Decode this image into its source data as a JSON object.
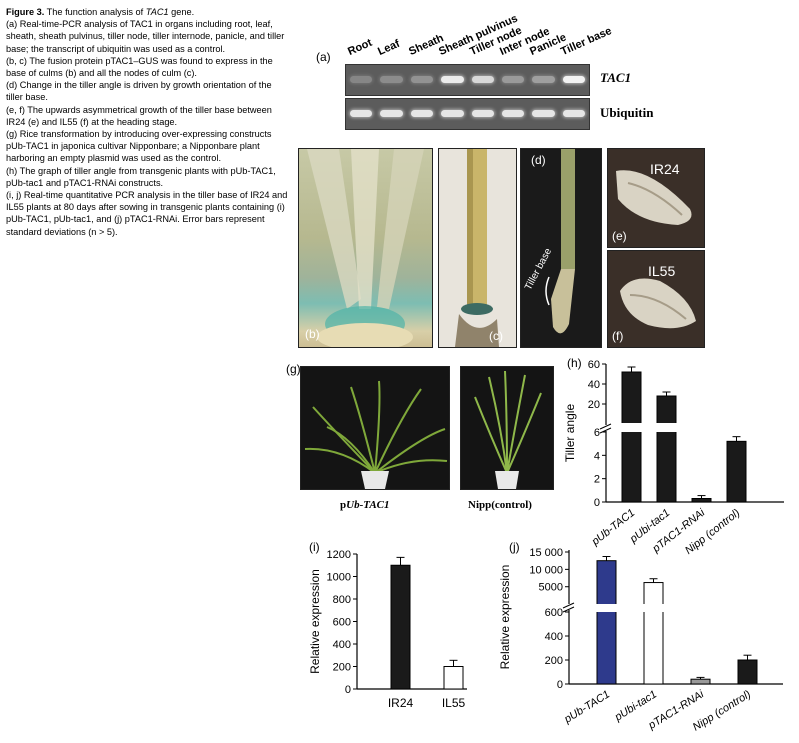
{
  "caption": {
    "title_bold": "Figure 3.",
    "title_rest": " The function analysis of ",
    "title_gene": "TAC1",
    "title_end": " gene.",
    "a": "(a) Real-time-PCR analysis of TAC1 in organs including root, leaf, sheath, sheath pulvinus, tiller node, tiller internode, panicle, and tiller base; the transcript of ubiquitin was used as a control.",
    "bc": "(b, c) The fusion protein pTAC1–GUS was found to express in the base of culms (b) and all the nodes of culm (c).",
    "d": "(d) Change in the tiller angle is driven by growth orientation of the tiller base.",
    "ef": "(e, f) The upwards asymmetrical growth of the tiller base between IR24 (e) and IL55 (f) at the heading stage.",
    "g": "(g) Rice transformation by introducing over-expressing constructs pUb-TAC1 in japonica cultivar Nipponbare; a Nipponbare plant harboring an empty plasmid was used as the control.",
    "h": "(h) The graph of tiller angle from transgenic plants with pUb-TAC1, pUb-tac1 and pTAC1-RNAi constructs.",
    "ij": "(i, j) Real-time quantitative PCR analysis in the tiller base of IR24 and IL55 plants at 80 days after sowing in transgenic plants containing (i) pUb-TAC1, pUb-tac1, and (j) pTAC1-RNAi. Error bars represent standard deviations (n > 5)."
  },
  "gel": {
    "panel_label": "(a)",
    "lanes": [
      "Root",
      "Leaf",
      "Sheath",
      "Sheath pulvinus",
      "Tiller node",
      "Inter node",
      "Panicle",
      "Tiller base"
    ],
    "rows": [
      {
        "name": "TAC1",
        "band_intensity": [
          0.15,
          0.2,
          0.25,
          0.95,
          0.8,
          0.3,
          0.35,
          1.0
        ]
      },
      {
        "name": "Ubiquitin",
        "band_intensity": [
          0.9,
          0.9,
          0.9,
          0.9,
          0.9,
          0.9,
          0.9,
          0.9
        ]
      }
    ]
  },
  "photos": {
    "b": "(b)",
    "c": "(c)",
    "d": "(d)",
    "e": "(e)",
    "f": "(f)",
    "g": "(g)",
    "e_label": "IR24",
    "f_label": "IL55",
    "d_annotation": "Tiller base",
    "g_left_prefix": "p",
    "g_left_italic": "Ub-TAC1",
    "g_right": "Nipp(control)"
  },
  "chart_data": [
    {
      "id": "h",
      "panel_label": "(h)",
      "type": "bar",
      "ylabel": "Tiller angle",
      "categories": [
        "pUb-TAC1",
        "pUbi-tac1",
        "pTAC1-RNAi",
        "Nipp (control)"
      ],
      "values": [
        52,
        28,
        0.3,
        5.2
      ],
      "errors": [
        5,
        4,
        0.25,
        0.4
      ],
      "colors": [
        "#1a1a1a",
        "#1a1a1a",
        "#1a1a1a",
        "#1a1a1a"
      ],
      "yticks_upper": [
        "20",
        "40",
        "60"
      ],
      "yticks_lower": [
        "0",
        "2",
        "4",
        "6"
      ],
      "broken_axis": true
    },
    {
      "id": "i",
      "panel_label": "(i)",
      "type": "bar",
      "ylabel": "Relative expression",
      "categories": [
        "IR24",
        "IL55"
      ],
      "values": [
        1100,
        200
      ],
      "errors": [
        70,
        55
      ],
      "colors": [
        "#1a1a1a",
        "#ffffff"
      ],
      "yticks": [
        "0",
        "200",
        "400",
        "600",
        "800",
        "1000",
        "1200"
      ],
      "ylim": [
        0,
        1200
      ]
    },
    {
      "id": "j",
      "panel_label": "(j)",
      "type": "bar",
      "ylabel": "Relative expression",
      "categories": [
        "pUb-TAC1",
        "pUbi-tac1",
        "pTAC1-RNAi",
        "Nipp (control)"
      ],
      "values": [
        12500,
        6200,
        40,
        200
      ],
      "errors": [
        1200,
        1100,
        15,
        40
      ],
      "colors": [
        "#2e3a8c",
        "#ffffff",
        "#9a9a9a",
        "#1a1a1a"
      ],
      "yticks_upper": [
        "5000",
        "10 000",
        "15 000"
      ],
      "yticks_lower": [
        "0",
        "200",
        "400",
        "600"
      ],
      "broken_axis": true
    }
  ]
}
